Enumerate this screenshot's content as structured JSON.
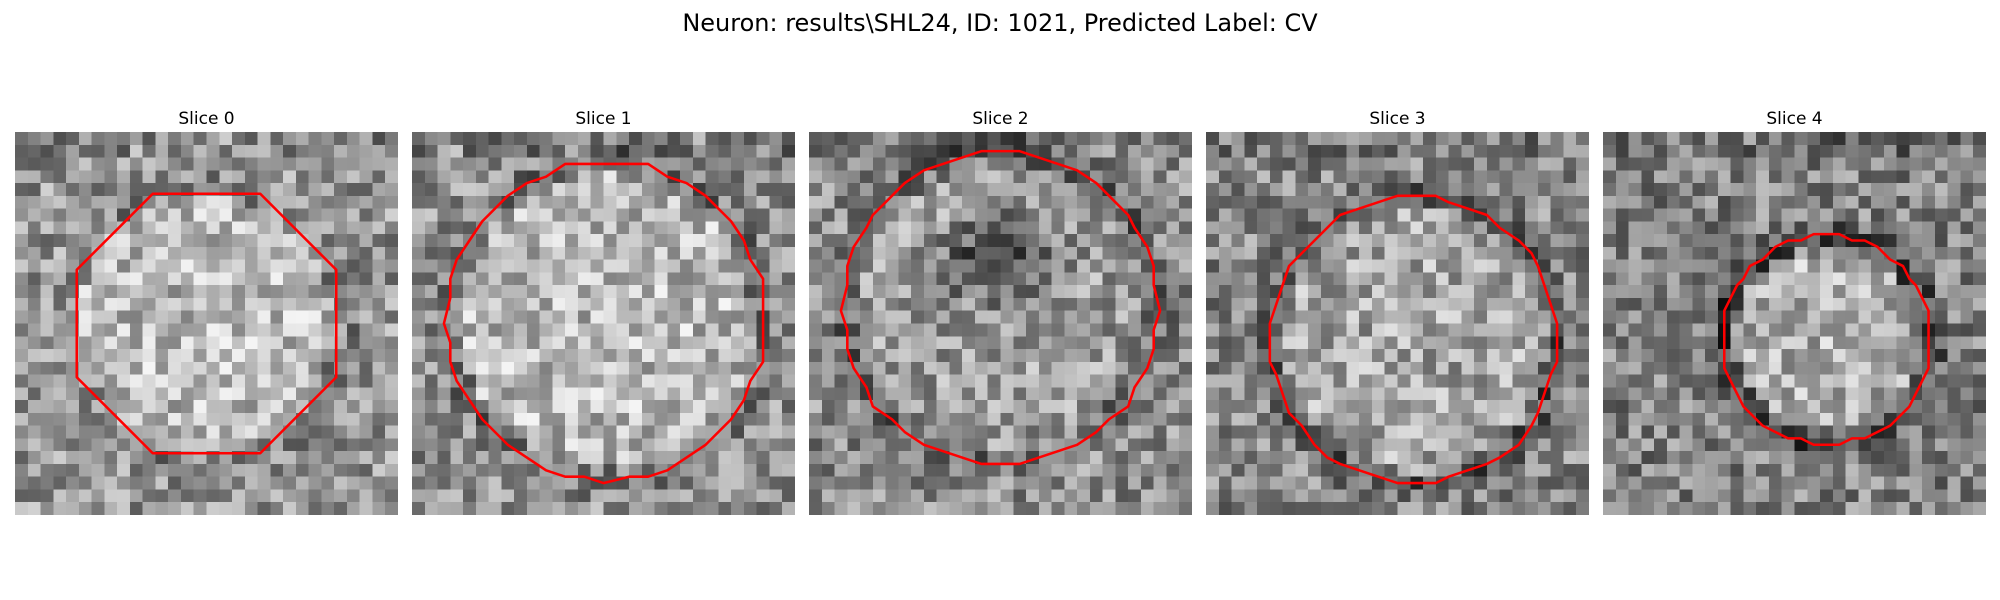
{
  "figure": {
    "title": "Neuron: results\\SHL24, ID: 1021, Predicted Label: CV",
    "contour_color": "#ff0000",
    "colormap": "gray",
    "grid_size": 30
  },
  "slices": [
    {
      "title": "Slice 0",
      "contour_shape": "octagon",
      "contour_center": [
        15,
        15
      ],
      "contour_radius": 11
    },
    {
      "title": "Slice 1",
      "contour_shape": "circle",
      "contour_center": [
        15.2,
        14.8
      ],
      "contour_radius": 12.5
    },
    {
      "title": "Slice 2",
      "contour_shape": "circle",
      "contour_center": [
        15,
        13.8
      ],
      "contour_radius": 12.3
    },
    {
      "title": "Slice 3",
      "contour_shape": "circle",
      "contour_center": [
        16.3,
        16.3
      ],
      "contour_radius": 11.3
    },
    {
      "title": "Slice 4",
      "contour_shape": "circle",
      "contour_center": [
        17.5,
        16.3
      ],
      "contour_radius": 8.2
    }
  ]
}
